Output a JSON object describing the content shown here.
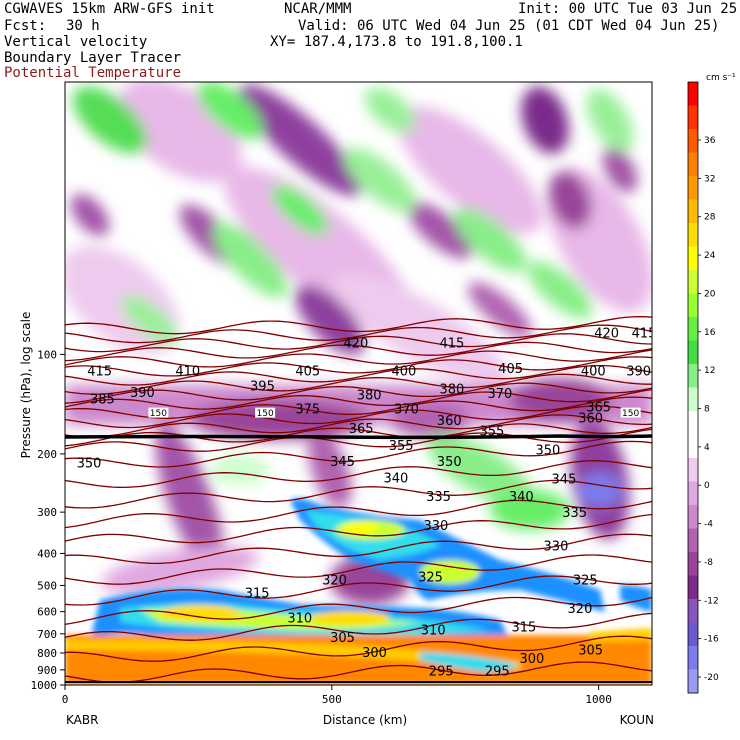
{
  "header": {
    "model": "CGWAVES 15km ARW-GFS init",
    "org": "NCAR/MMM",
    "init": "Init: 00 UTC Tue 03 Jun 25",
    "fcst_label": "Fcst:",
    "fcst_value": "30 h",
    "valid": "Valid: 06 UTC Wed 04 Jun 25 (01 CDT Wed 04 Jun 25)",
    "field1": "Vertical velocity",
    "field2": "Boundary Layer Tracer",
    "field3": "Potential Temperature",
    "xy": "XY= 187.4,173.8 to 191.8,100.1"
  },
  "colors": {
    "theta_line": "#800000",
    "tropopause_line": "#000000"
  },
  "chart_data": {
    "type": "heatmap",
    "xlabel": "Distance (km)",
    "ylabel": "Pressure (hPa), log scale",
    "x_ticks": [
      0,
      500,
      1000
    ],
    "xlim": [
      0,
      1100
    ],
    "y_ticks": [
      100,
      200,
      300,
      400,
      500,
      600,
      700,
      800,
      900,
      1000
    ],
    "ylim": [
      1000,
      15
    ],
    "y_scale": "log",
    "x_end_labels": {
      "left": "KABR",
      "right": "KOUN"
    },
    "colorbar": {
      "unit": "cm s⁻¹",
      "labels": [
        36,
        32,
        28,
        24,
        20,
        16,
        12,
        8,
        4,
        0,
        -4,
        -8,
        -12,
        -16,
        -20
      ],
      "colors": [
        "#ff0000",
        "#ff3300",
        "#ff5a00",
        "#ff8000",
        "#ff9900",
        "#ffbb00",
        "#ffdd00",
        "#ffff00",
        "#ccff33",
        "#99ff33",
        "#66ee44",
        "#44dd44",
        "#88ee88",
        "#ccffcc",
        "#ffffff",
        "#ffffff",
        "#f0ccf0",
        "#e0a8e0",
        "#cc88cc",
        "#b064b0",
        "#994499",
        "#7a2a8a",
        "#8855bb",
        "#6a5acd",
        "#7b7bef",
        "#9a9af5"
      ]
    },
    "theta_labels": [
      {
        "v": "420",
        "x": 1015,
        "p": 86
      },
      {
        "v": "415",
        "x": 1085,
        "p": 86
      },
      {
        "v": "420",
        "x": 545,
        "p": 92
      },
      {
        "v": "415",
        "x": 725,
        "p": 92
      },
      {
        "v": "415",
        "x": 65,
        "p": 112
      },
      {
        "v": "410",
        "x": 230,
        "p": 112
      },
      {
        "v": "405",
        "x": 455,
        "p": 112
      },
      {
        "v": "400",
        "x": 635,
        "p": 112
      },
      {
        "v": "405",
        "x": 835,
        "p": 110
      },
      {
        "v": "400",
        "x": 990,
        "p": 112
      },
      {
        "v": "390",
        "x": 1075,
        "p": 112
      },
      {
        "v": "395",
        "x": 370,
        "p": 124
      },
      {
        "v": "390",
        "x": 145,
        "p": 130
      },
      {
        "v": "380",
        "x": 570,
        "p": 132
      },
      {
        "v": "380",
        "x": 725,
        "p": 127
      },
      {
        "v": "370",
        "x": 815,
        "p": 131
      },
      {
        "v": "385",
        "x": 70,
        "p": 136
      },
      {
        "v": "375",
        "x": 455,
        "p": 146
      },
      {
        "v": "370",
        "x": 640,
        "p": 146
      },
      {
        "v": "365",
        "x": 1000,
        "p": 144
      },
      {
        "v": "360",
        "x": 985,
        "p": 155
      },
      {
        "v": "360",
        "x": 720,
        "p": 158
      },
      {
        "v": "365",
        "x": 555,
        "p": 167
      },
      {
        "v": "355",
        "x": 800,
        "p": 170
      },
      {
        "v": "355",
        "x": 630,
        "p": 188
      },
      {
        "v": "350",
        "x": 905,
        "p": 194
      },
      {
        "v": "350",
        "x": 45,
        "p": 212
      },
      {
        "v": "345",
        "x": 520,
        "p": 210
      },
      {
        "v": "350",
        "x": 720,
        "p": 210
      },
      {
        "v": "340",
        "x": 620,
        "p": 236
      },
      {
        "v": "345",
        "x": 935,
        "p": 237
      },
      {
        "v": "335",
        "x": 700,
        "p": 268
      },
      {
        "v": "340",
        "x": 855,
        "p": 268
      },
      {
        "v": "335",
        "x": 955,
        "p": 300
      },
      {
        "v": "330",
        "x": 695,
        "p": 328
      },
      {
        "v": "330",
        "x": 920,
        "p": 378
      },
      {
        "v": "325",
        "x": 685,
        "p": 470
      },
      {
        "v": "325",
        "x": 975,
        "p": 480
      },
      {
        "v": "320",
        "x": 505,
        "p": 480
      },
      {
        "v": "315",
        "x": 360,
        "p": 525
      },
      {
        "v": "320",
        "x": 965,
        "p": 585
      },
      {
        "v": "310",
        "x": 440,
        "p": 625
      },
      {
        "v": "310",
        "x": 690,
        "p": 680
      },
      {
        "v": "315",
        "x": 860,
        "p": 665
      },
      {
        "v": "305",
        "x": 520,
        "p": 715
      },
      {
        "v": "300",
        "x": 580,
        "p": 795
      },
      {
        "v": "305",
        "x": 985,
        "p": 780
      },
      {
        "v": "300",
        "x": 875,
        "p": 830
      },
      {
        "v": "295",
        "x": 705,
        "p": 905
      },
      {
        "v": "295",
        "x": 810,
        "p": 905
      }
    ],
    "tropopause_labels": [
      {
        "v": "150",
        "x": 175,
        "p": 150
      },
      {
        "v": "150",
        "x": 375,
        "p": 150
      },
      {
        "v": "150",
        "x": 1060,
        "p": 150
      }
    ]
  }
}
